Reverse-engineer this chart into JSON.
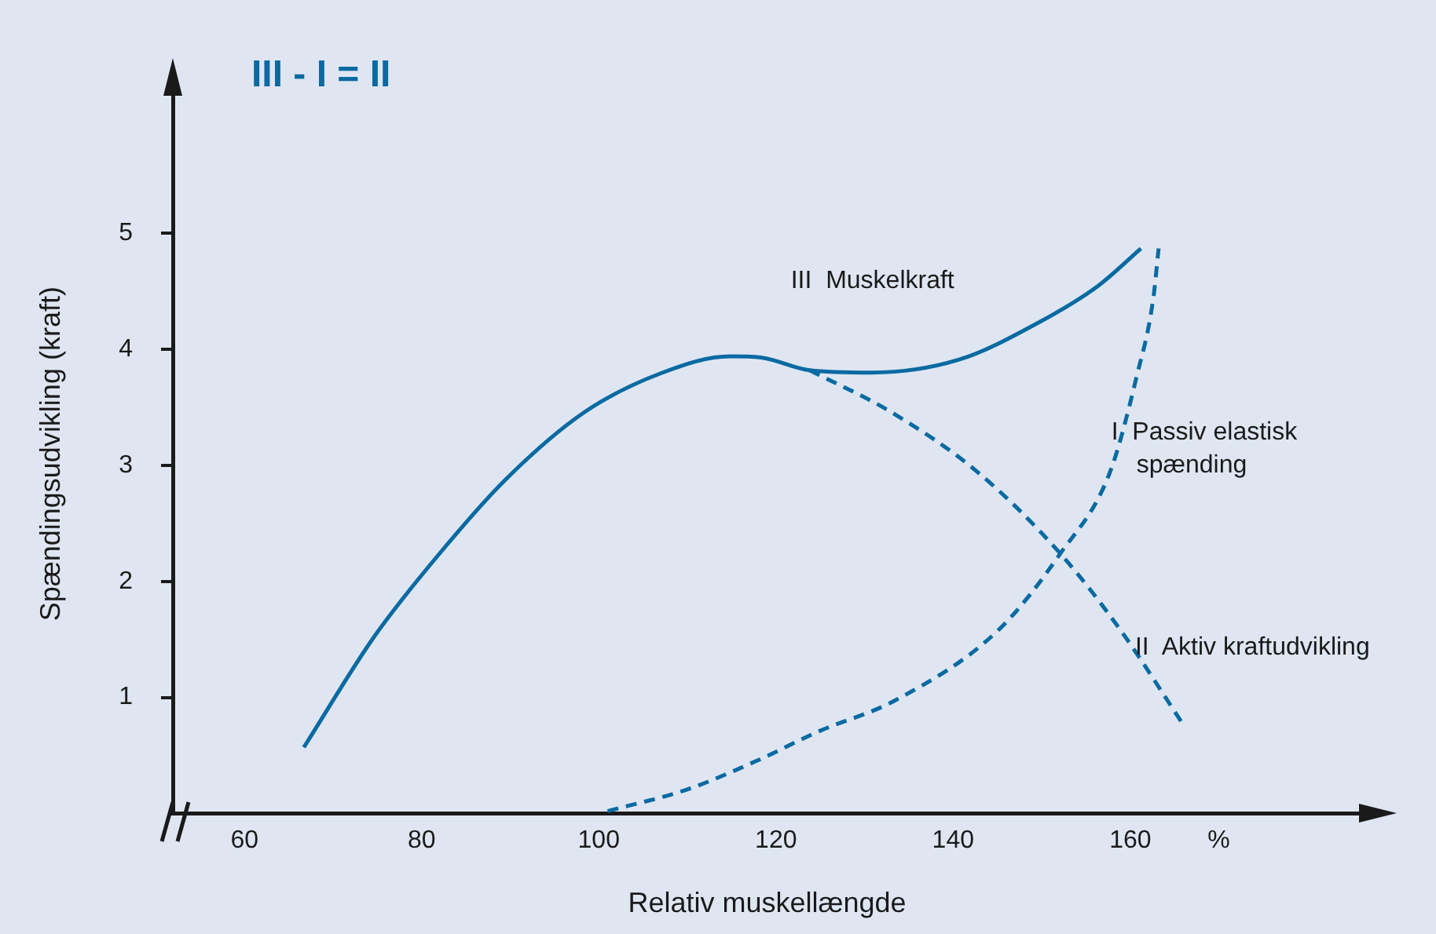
{
  "chart_data": {
    "type": "line",
    "title": "III - I = II",
    "xlabel": "Relativ muskellængde",
    "ylabel": "Spændingsudvikling (kraft)",
    "xlim": [
      52,
      186
    ],
    "xticks": [
      60,
      80,
      100,
      120,
      140,
      160,
      {
        "value": 170,
        "label": "%"
      }
    ],
    "ylim": [
      0,
      6.2
    ],
    "yticks": [
      1,
      2,
      3,
      4,
      5
    ],
    "grid": false,
    "legend": false,
    "marker": "none",
    "series": [
      {
        "name": "III  Muskelkraft",
        "color": "#0a6aa1",
        "line_style": "solid",
        "x": [
          66.7,
          74.7,
          81.8,
          89.5,
          98.4,
          107.2,
          114.8,
          118.3,
          123.8,
          130.7,
          140.6,
          149.6,
          156.4,
          161.2
        ],
        "values": [
          0.57,
          1.53,
          2.22,
          2.88,
          3.46,
          3.8,
          3.94,
          3.93,
          3.82,
          3.8,
          3.91,
          4.23,
          4.55,
          4.87
        ]
      },
      {
        "name": "I  Passiv elastisk\nspænding",
        "color": "#0a6aa1",
        "line_style": "dashed",
        "x": [
          101,
          110.1,
          118.3,
          124.6,
          133.6,
          145.1,
          152.1,
          157.7,
          160.7,
          162.6,
          163.2
        ],
        "values": [
          0.02,
          0.21,
          0.47,
          0.7,
          0.98,
          1.58,
          2.24,
          2.94,
          3.76,
          4.44,
          4.87
        ]
      },
      {
        "name": "II  Aktiv kraftudvikling",
        "color": "#0a6aa1",
        "line_style": "dashed",
        "x": [
          123.8,
          133,
          142.8,
          152.1,
          158.9,
          166.2
        ],
        "values": [
          3.82,
          3.46,
          2.94,
          2.24,
          1.58,
          0.74
        ]
      }
    ]
  }
}
